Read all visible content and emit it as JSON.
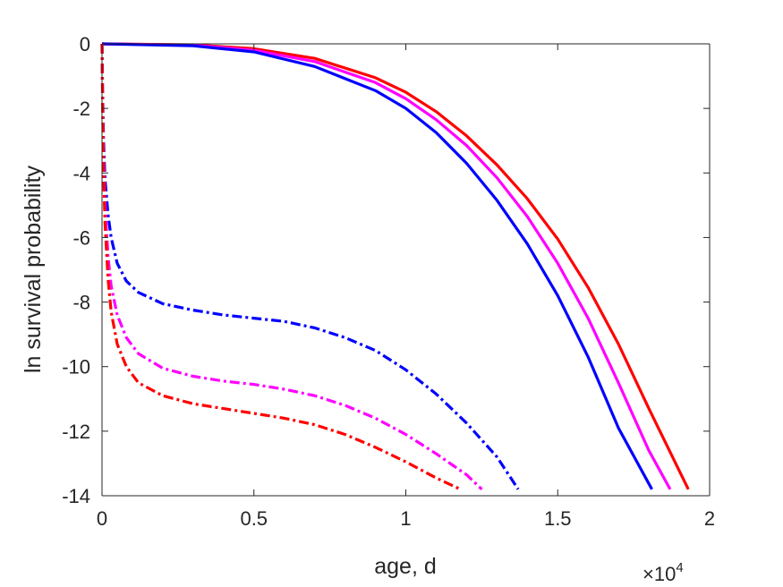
{
  "chart_data": {
    "type": "line",
    "xlabel": "age, d",
    "ylabel": "ln survival probability",
    "x_exponent_label": "×10",
    "x_exponent_power": "4",
    "xlim": [
      0,
      2
    ],
    "ylim": [
      -14,
      0
    ],
    "x_ticks": [
      0,
      0.5,
      1,
      1.5,
      2
    ],
    "x_tick_labels": [
      "0",
      "0.5",
      "1",
      "1.5",
      "2"
    ],
    "y_ticks": [
      0,
      -2,
      -4,
      -6,
      -8,
      -10,
      -12,
      -14
    ],
    "y_tick_labels": [
      "0",
      "-2",
      "-4",
      "-6",
      "-8",
      "-10",
      "-12",
      "-14"
    ],
    "grid": false,
    "colors": {
      "red": "#ff0000",
      "magenta": "#ff00ff",
      "blue": "#0000ff",
      "axis": "#262626"
    },
    "series": [
      {
        "color": "#ff0000",
        "style": "solid",
        "x": [
          0,
          0.3,
          0.5,
          0.7,
          0.9,
          1.0,
          1.1,
          1.2,
          1.3,
          1.4,
          1.5,
          1.6,
          1.7,
          1.8,
          1.93
        ],
        "y": [
          0,
          -0.03,
          -0.15,
          -0.45,
          -1.05,
          -1.5,
          -2.1,
          -2.85,
          -3.75,
          -4.8,
          -6.05,
          -7.55,
          -9.3,
          -11.3,
          -13.8
        ]
      },
      {
        "color": "#ff00ff",
        "style": "solid",
        "x": [
          0,
          0.3,
          0.5,
          0.7,
          0.9,
          1.0,
          1.1,
          1.2,
          1.3,
          1.4,
          1.5,
          1.6,
          1.7,
          1.8,
          1.87
        ],
        "y": [
          0,
          -0.04,
          -0.2,
          -0.55,
          -1.2,
          -1.7,
          -2.35,
          -3.15,
          -4.15,
          -5.35,
          -6.8,
          -8.5,
          -10.5,
          -12.6,
          -13.8
        ]
      },
      {
        "color": "#0000ff",
        "style": "solid",
        "x": [
          0,
          0.3,
          0.5,
          0.7,
          0.9,
          1.0,
          1.1,
          1.2,
          1.3,
          1.4,
          1.5,
          1.6,
          1.7,
          1.81
        ],
        "y": [
          0,
          -0.06,
          -0.25,
          -0.7,
          -1.45,
          -2.0,
          -2.75,
          -3.7,
          -4.85,
          -6.2,
          -7.8,
          -9.7,
          -11.9,
          -13.8
        ]
      },
      {
        "color": "#0000ff",
        "style": "dashdot",
        "x": [
          0.0,
          0.002,
          0.005,
          0.01,
          0.02,
          0.03,
          0.05,
          0.08,
          0.12,
          0.2,
          0.3,
          0.4,
          0.5,
          0.6,
          0.7,
          0.8,
          0.9,
          1.0,
          1.1,
          1.2,
          1.3,
          1.37
        ],
        "y": [
          0,
          -1.5,
          -3.0,
          -4.2,
          -5.3,
          -6.0,
          -6.8,
          -7.35,
          -7.7,
          -8.05,
          -8.25,
          -8.4,
          -8.5,
          -8.6,
          -8.8,
          -9.1,
          -9.5,
          -10.1,
          -10.85,
          -11.75,
          -12.8,
          -13.8
        ]
      },
      {
        "color": "#ff00ff",
        "style": "dashdot",
        "x": [
          0.0,
          0.002,
          0.005,
          0.01,
          0.02,
          0.03,
          0.05,
          0.08,
          0.12,
          0.2,
          0.3,
          0.4,
          0.5,
          0.6,
          0.7,
          0.8,
          0.9,
          1.0,
          1.1,
          1.2,
          1.25
        ],
        "y": [
          0,
          -1.8,
          -3.5,
          -5.0,
          -6.6,
          -7.5,
          -8.4,
          -9.1,
          -9.6,
          -10.05,
          -10.3,
          -10.45,
          -10.55,
          -10.7,
          -10.9,
          -11.2,
          -11.6,
          -12.1,
          -12.7,
          -13.35,
          -13.8
        ]
      },
      {
        "color": "#ff0000",
        "style": "dashdot",
        "x": [
          0.0,
          0.002,
          0.005,
          0.01,
          0.02,
          0.03,
          0.05,
          0.08,
          0.12,
          0.2,
          0.3,
          0.4,
          0.5,
          0.6,
          0.7,
          0.8,
          0.9,
          1.0,
          1.1,
          1.18
        ],
        "y": [
          0,
          -2.0,
          -4.0,
          -5.6,
          -7.3,
          -8.3,
          -9.3,
          -10.0,
          -10.5,
          -10.9,
          -11.15,
          -11.3,
          -11.45,
          -11.6,
          -11.8,
          -12.1,
          -12.5,
          -12.95,
          -13.45,
          -13.8
        ]
      }
    ]
  }
}
